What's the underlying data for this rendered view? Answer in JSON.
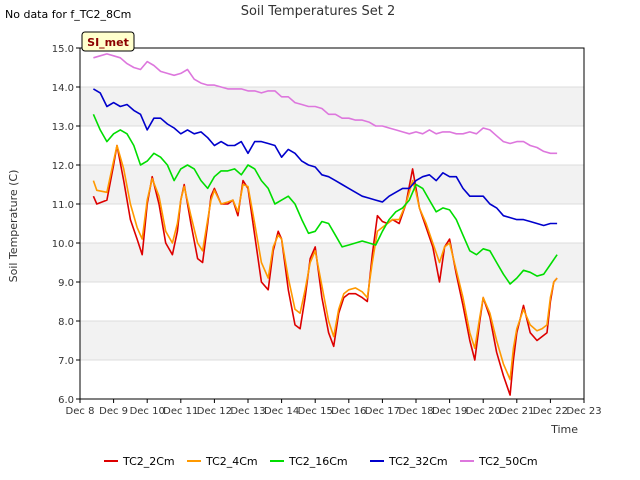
{
  "nodata_text": "No data for f_TC2_8Cm",
  "badge_text": "SI_met",
  "colors": {
    "background_band": "#f2f2f2",
    "grid": "#dcdcdc",
    "axis": "#000000",
    "badge_fill": "#ffffcc",
    "badge_text": "#8b0000"
  },
  "chart_data": {
    "type": "line",
    "title": "Soil Temperatures Set 2",
    "xlabel": "Time",
    "ylabel": "Soil Temperature (C)",
    "xlim": [
      8,
      23
    ],
    "ylim": [
      6.0,
      15.0
    ],
    "x_ticks": [
      8,
      9,
      10,
      11,
      12,
      13,
      14,
      15,
      16,
      17,
      18,
      19,
      20,
      21,
      22,
      23
    ],
    "x_tick_labels": [
      "Dec 8",
      "Dec 9",
      "Dec 10",
      "Dec 11",
      "Dec 12",
      "Dec 13",
      "Dec 14",
      "Dec 15",
      "Dec 16",
      "Dec 17",
      "Dec 18",
      "Dec 19",
      "Dec 20",
      "Dec 21",
      "Dec 22",
      "Dec 23"
    ],
    "y_ticks": [
      6.0,
      7.0,
      8.0,
      9.0,
      10.0,
      11.0,
      12.0,
      13.0,
      14.0,
      15.0
    ],
    "y_tick_labels": [
      "6.0",
      "7.0",
      "8.0",
      "9.0",
      "10.0",
      "11.0",
      "12.0",
      "13.0",
      "14.0",
      "15.0"
    ],
    "grid": true,
    "legend_position": "bottom",
    "series": [
      {
        "name": "TC2_2Cm",
        "color": "#dd0000",
        "x": [
          8.4,
          8.5,
          8.8,
          9.0,
          9.1,
          9.3,
          9.5,
          9.7,
          9.85,
          10.0,
          10.15,
          10.35,
          10.55,
          10.75,
          10.9,
          11.0,
          11.1,
          11.3,
          11.5,
          11.65,
          11.8,
          11.9,
          12.0,
          12.2,
          12.4,
          12.55,
          12.7,
          12.85,
          13.0,
          13.2,
          13.4,
          13.6,
          13.75,
          13.9,
          14.0,
          14.2,
          14.4,
          14.55,
          14.7,
          14.85,
          15.0,
          15.2,
          15.4,
          15.55,
          15.7,
          15.85,
          16.0,
          16.2,
          16.4,
          16.55,
          16.7,
          16.85,
          17.0,
          17.15,
          17.3,
          17.5,
          17.7,
          17.9,
          18.0,
          18.1,
          18.3,
          18.5,
          18.7,
          18.85,
          19.0,
          19.2,
          19.4,
          19.6,
          19.75,
          19.9,
          20.0,
          20.2,
          20.4,
          20.6,
          20.8,
          20.9,
          21.0,
          21.2,
          21.4,
          21.6,
          21.75,
          21.9,
          22.0,
          22.1,
          22.2
        ],
        "values": [
          11.2,
          11.0,
          11.1,
          12.0,
          12.5,
          11.6,
          10.6,
          10.1,
          9.7,
          11.0,
          11.7,
          11.0,
          10.0,
          9.7,
          10.3,
          11.1,
          11.5,
          10.5,
          9.6,
          9.5,
          10.5,
          11.2,
          11.4,
          11.0,
          11.0,
          11.1,
          10.7,
          11.6,
          11.4,
          10.2,
          9.0,
          8.8,
          9.8,
          10.3,
          10.1,
          8.8,
          7.9,
          7.8,
          8.6,
          9.6,
          9.9,
          8.6,
          7.7,
          7.35,
          8.2,
          8.6,
          8.7,
          8.7,
          8.6,
          8.5,
          9.7,
          10.7,
          10.55,
          10.5,
          10.6,
          10.5,
          11.0,
          11.9,
          11.4,
          10.9,
          10.4,
          9.9,
          9.0,
          9.9,
          10.1,
          9.2,
          8.4,
          7.5,
          7.0,
          8.0,
          8.6,
          8.1,
          7.2,
          6.6,
          6.1,
          7.0,
          7.7,
          8.4,
          7.7,
          7.5,
          7.6,
          7.7,
          8.5,
          9.0,
          9.1
        ]
      },
      {
        "name": "TC2_4Cm",
        "color": "#ff9900",
        "x": [
          8.4,
          8.5,
          8.8,
          9.0,
          9.1,
          9.3,
          9.5,
          9.7,
          9.85,
          10.0,
          10.15,
          10.35,
          10.55,
          10.75,
          10.9,
          11.0,
          11.1,
          11.3,
          11.5,
          11.65,
          11.8,
          11.9,
          12.0,
          12.2,
          12.4,
          12.55,
          12.7,
          12.85,
          13.0,
          13.2,
          13.4,
          13.6,
          13.75,
          13.9,
          14.0,
          14.2,
          14.4,
          14.55,
          14.7,
          14.85,
          15.0,
          15.2,
          15.4,
          15.55,
          15.7,
          15.85,
          16.0,
          16.2,
          16.4,
          16.55,
          16.7,
          16.85,
          17.0,
          17.15,
          17.3,
          17.5,
          17.7,
          17.9,
          18.0,
          18.1,
          18.3,
          18.5,
          18.7,
          18.85,
          19.0,
          19.2,
          19.4,
          19.6,
          19.75,
          19.9,
          20.0,
          20.2,
          20.4,
          20.6,
          20.8,
          20.9,
          21.0,
          21.2,
          21.4,
          21.6,
          21.75,
          21.9,
          22.0,
          22.1,
          22.2
        ],
        "values": [
          11.6,
          11.35,
          11.3,
          12.1,
          12.5,
          11.9,
          11.0,
          10.4,
          10.1,
          11.1,
          11.65,
          11.2,
          10.3,
          10.0,
          10.5,
          11.1,
          11.45,
          10.7,
          10.0,
          9.8,
          10.6,
          11.1,
          11.35,
          11.0,
          11.05,
          11.1,
          10.8,
          11.5,
          11.45,
          10.5,
          9.5,
          9.1,
          9.9,
          10.2,
          10.1,
          9.1,
          8.3,
          8.2,
          8.8,
          9.5,
          9.8,
          8.9,
          8.0,
          7.6,
          8.3,
          8.7,
          8.8,
          8.85,
          8.75,
          8.6,
          9.5,
          10.3,
          10.4,
          10.5,
          10.6,
          10.6,
          11.0,
          11.6,
          11.3,
          10.9,
          10.5,
          10.0,
          9.5,
          9.9,
          10.0,
          9.3,
          8.6,
          7.7,
          7.3,
          8.1,
          8.6,
          8.2,
          7.5,
          6.9,
          6.5,
          7.3,
          7.8,
          8.3,
          7.9,
          7.75,
          7.8,
          7.9,
          8.6,
          9.0,
          9.1
        ]
      },
      {
        "name": "TC2_16Cm",
        "color": "#00dd00",
        "x": [
          8.4,
          8.6,
          8.8,
          9.0,
          9.2,
          9.4,
          9.6,
          9.8,
          10.0,
          10.2,
          10.4,
          10.6,
          10.8,
          11.0,
          11.2,
          11.4,
          11.6,
          11.8,
          12.0,
          12.2,
          12.4,
          12.6,
          12.8,
          13.0,
          13.2,
          13.4,
          13.6,
          13.8,
          14.0,
          14.2,
          14.4,
          14.6,
          14.8,
          15.0,
          15.2,
          15.4,
          15.6,
          15.8,
          16.0,
          16.2,
          16.4,
          16.6,
          16.8,
          17.0,
          17.2,
          17.4,
          17.6,
          17.8,
          18.0,
          18.2,
          18.4,
          18.6,
          18.8,
          19.0,
          19.2,
          19.4,
          19.6,
          19.8,
          20.0,
          20.2,
          20.4,
          20.6,
          20.8,
          21.0,
          21.2,
          21.4,
          21.6,
          21.8,
          22.0,
          22.2
        ],
        "values": [
          13.3,
          12.9,
          12.6,
          12.8,
          12.9,
          12.8,
          12.5,
          12.0,
          12.1,
          12.3,
          12.2,
          12.0,
          11.6,
          11.9,
          12.0,
          11.9,
          11.6,
          11.4,
          11.7,
          11.85,
          11.85,
          11.9,
          11.75,
          12.0,
          11.9,
          11.6,
          11.4,
          11.0,
          11.1,
          11.2,
          11.0,
          10.6,
          10.25,
          10.3,
          10.55,
          10.5,
          10.2,
          9.9,
          9.95,
          10.0,
          10.05,
          10.0,
          9.95,
          10.3,
          10.6,
          10.8,
          10.9,
          11.1,
          11.5,
          11.4,
          11.1,
          10.8,
          10.9,
          10.85,
          10.6,
          10.2,
          9.8,
          9.7,
          9.85,
          9.8,
          9.5,
          9.2,
          8.95,
          9.1,
          9.3,
          9.25,
          9.15,
          9.2,
          9.45,
          9.7
        ]
      },
      {
        "name": "TC2_32Cm",
        "color": "#0000cc",
        "x": [
          8.4,
          8.6,
          8.8,
          9.0,
          9.2,
          9.4,
          9.6,
          9.8,
          10.0,
          10.2,
          10.4,
          10.6,
          10.8,
          11.0,
          11.2,
          11.4,
          11.6,
          11.8,
          12.0,
          12.2,
          12.4,
          12.6,
          12.8,
          13.0,
          13.2,
          13.4,
          13.6,
          13.8,
          14.0,
          14.2,
          14.4,
          14.6,
          14.8,
          15.0,
          15.2,
          15.4,
          15.6,
          15.8,
          16.0,
          16.2,
          16.4,
          16.6,
          16.8,
          17.0,
          17.2,
          17.4,
          17.6,
          17.8,
          18.0,
          18.2,
          18.4,
          18.6,
          18.8,
          19.0,
          19.2,
          19.4,
          19.6,
          19.8,
          20.0,
          20.2,
          20.4,
          20.6,
          20.8,
          21.0,
          21.2,
          21.4,
          21.6,
          21.8,
          22.0,
          22.2
        ],
        "values": [
          13.95,
          13.85,
          13.5,
          13.6,
          13.5,
          13.55,
          13.4,
          13.3,
          12.9,
          13.2,
          13.2,
          13.05,
          12.95,
          12.8,
          12.9,
          12.8,
          12.85,
          12.7,
          12.5,
          12.6,
          12.5,
          12.5,
          12.6,
          12.3,
          12.6,
          12.6,
          12.55,
          12.5,
          12.2,
          12.4,
          12.3,
          12.1,
          12.0,
          11.95,
          11.75,
          11.7,
          11.6,
          11.5,
          11.4,
          11.3,
          11.2,
          11.15,
          11.1,
          11.05,
          11.2,
          11.3,
          11.4,
          11.4,
          11.6,
          11.7,
          11.75,
          11.6,
          11.8,
          11.7,
          11.7,
          11.4,
          11.2,
          11.2,
          11.2,
          11.0,
          10.9,
          10.7,
          10.65,
          10.6,
          10.6,
          10.55,
          10.5,
          10.45,
          10.5,
          10.5
        ]
      },
      {
        "name": "TC2_50Cm",
        "color": "#dd77dd",
        "x": [
          8.4,
          8.6,
          8.8,
          9.0,
          9.2,
          9.4,
          9.6,
          9.8,
          10.0,
          10.2,
          10.4,
          10.6,
          10.8,
          11.0,
          11.2,
          11.4,
          11.6,
          11.8,
          12.0,
          12.2,
          12.4,
          12.6,
          12.8,
          13.0,
          13.2,
          13.4,
          13.6,
          13.8,
          14.0,
          14.2,
          14.4,
          14.6,
          14.8,
          15.0,
          15.2,
          15.4,
          15.6,
          15.8,
          16.0,
          16.2,
          16.4,
          16.6,
          16.8,
          17.0,
          17.2,
          17.4,
          17.6,
          17.8,
          18.0,
          18.2,
          18.4,
          18.6,
          18.8,
          19.0,
          19.2,
          19.4,
          19.6,
          19.8,
          20.0,
          20.2,
          20.4,
          20.6,
          20.8,
          21.0,
          21.2,
          21.4,
          21.6,
          21.8,
          22.0,
          22.2
        ],
        "values": [
          14.75,
          14.8,
          14.85,
          14.8,
          14.75,
          14.6,
          14.5,
          14.45,
          14.65,
          14.55,
          14.4,
          14.35,
          14.3,
          14.35,
          14.45,
          14.2,
          14.1,
          14.05,
          14.05,
          14.0,
          13.95,
          13.95,
          13.95,
          13.9,
          13.9,
          13.85,
          13.9,
          13.9,
          13.75,
          13.75,
          13.6,
          13.55,
          13.5,
          13.5,
          13.45,
          13.3,
          13.3,
          13.2,
          13.2,
          13.15,
          13.15,
          13.1,
          13.0,
          13.0,
          12.95,
          12.9,
          12.85,
          12.8,
          12.85,
          12.8,
          12.9,
          12.8,
          12.85,
          12.85,
          12.8,
          12.8,
          12.85,
          12.8,
          12.95,
          12.9,
          12.75,
          12.6,
          12.55,
          12.6,
          12.6,
          12.5,
          12.45,
          12.35,
          12.3,
          12.3
        ]
      }
    ]
  }
}
